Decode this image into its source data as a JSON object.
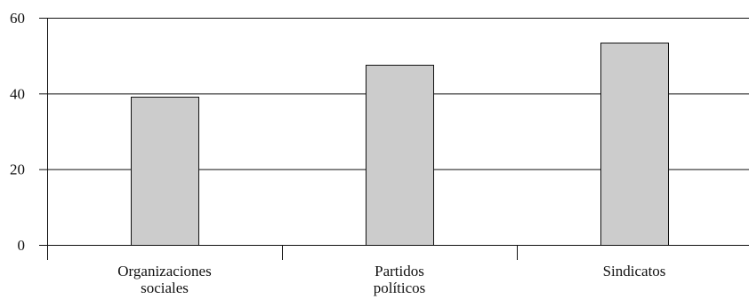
{
  "chart_data": {
    "type": "bar",
    "title": "",
    "xlabel": "",
    "ylabel": "",
    "categories": [
      [
        "Organizaciones",
        "sociales"
      ],
      [
        "Partidos",
        "políticos"
      ],
      [
        "Sindicatos"
      ]
    ],
    "values": [
      39.2,
      47.6,
      53.4
    ],
    "ylim": [
      0,
      60
    ],
    "yticks": [
      0,
      20,
      40,
      60
    ],
    "ytick_labels": [
      "0",
      "20",
      "40",
      "60"
    ],
    "grid": true,
    "legend": "none",
    "colors": {
      "bar_fill": "#cccccc",
      "bar_stroke": "#111111",
      "grid": "#111111",
      "axis": "#111111"
    }
  }
}
